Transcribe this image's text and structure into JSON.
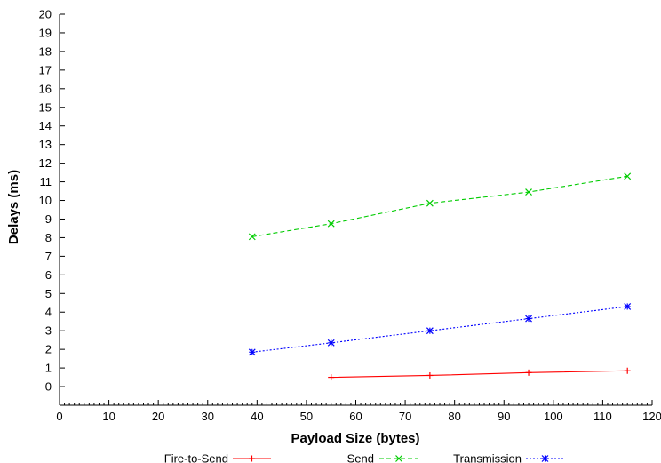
{
  "chart_data": {
    "type": "line",
    "xlabel": "Payload Size (bytes)",
    "ylabel": "Delays (ms)",
    "xlim": [
      0,
      120
    ],
    "ylim": [
      -1,
      20
    ],
    "x_ticks": [
      0,
      10,
      20,
      30,
      40,
      50,
      60,
      70,
      80,
      90,
      100,
      110,
      120
    ],
    "x_minor_step": 1,
    "y_ticks": [
      0,
      1,
      2,
      3,
      4,
      5,
      6,
      7,
      8,
      9,
      10,
      11,
      12,
      13,
      14,
      15,
      16,
      17,
      18,
      19,
      20
    ],
    "grid": false,
    "legend_position": "bottom",
    "series": [
      {
        "name": "Fire-to-Send",
        "color": "#ff0000",
        "marker": "plus",
        "dash": "solid",
        "x": [
          55,
          75,
          95,
          115
        ],
        "values": [
          0.5,
          0.6,
          0.75,
          0.85
        ]
      },
      {
        "name": "Send",
        "color": "#00cc00",
        "marker": "x",
        "dash": "dashed",
        "x": [
          39,
          55,
          75,
          95,
          115
        ],
        "values": [
          8.05,
          8.75,
          9.85,
          10.45,
          11.3
        ]
      },
      {
        "name": "Transmission",
        "color": "#0000ff",
        "marker": "star",
        "dash": "dotted",
        "x": [
          39,
          55,
          75,
          95,
          115
        ],
        "values": [
          1.85,
          2.35,
          3.0,
          3.65,
          4.3
        ]
      }
    ]
  }
}
